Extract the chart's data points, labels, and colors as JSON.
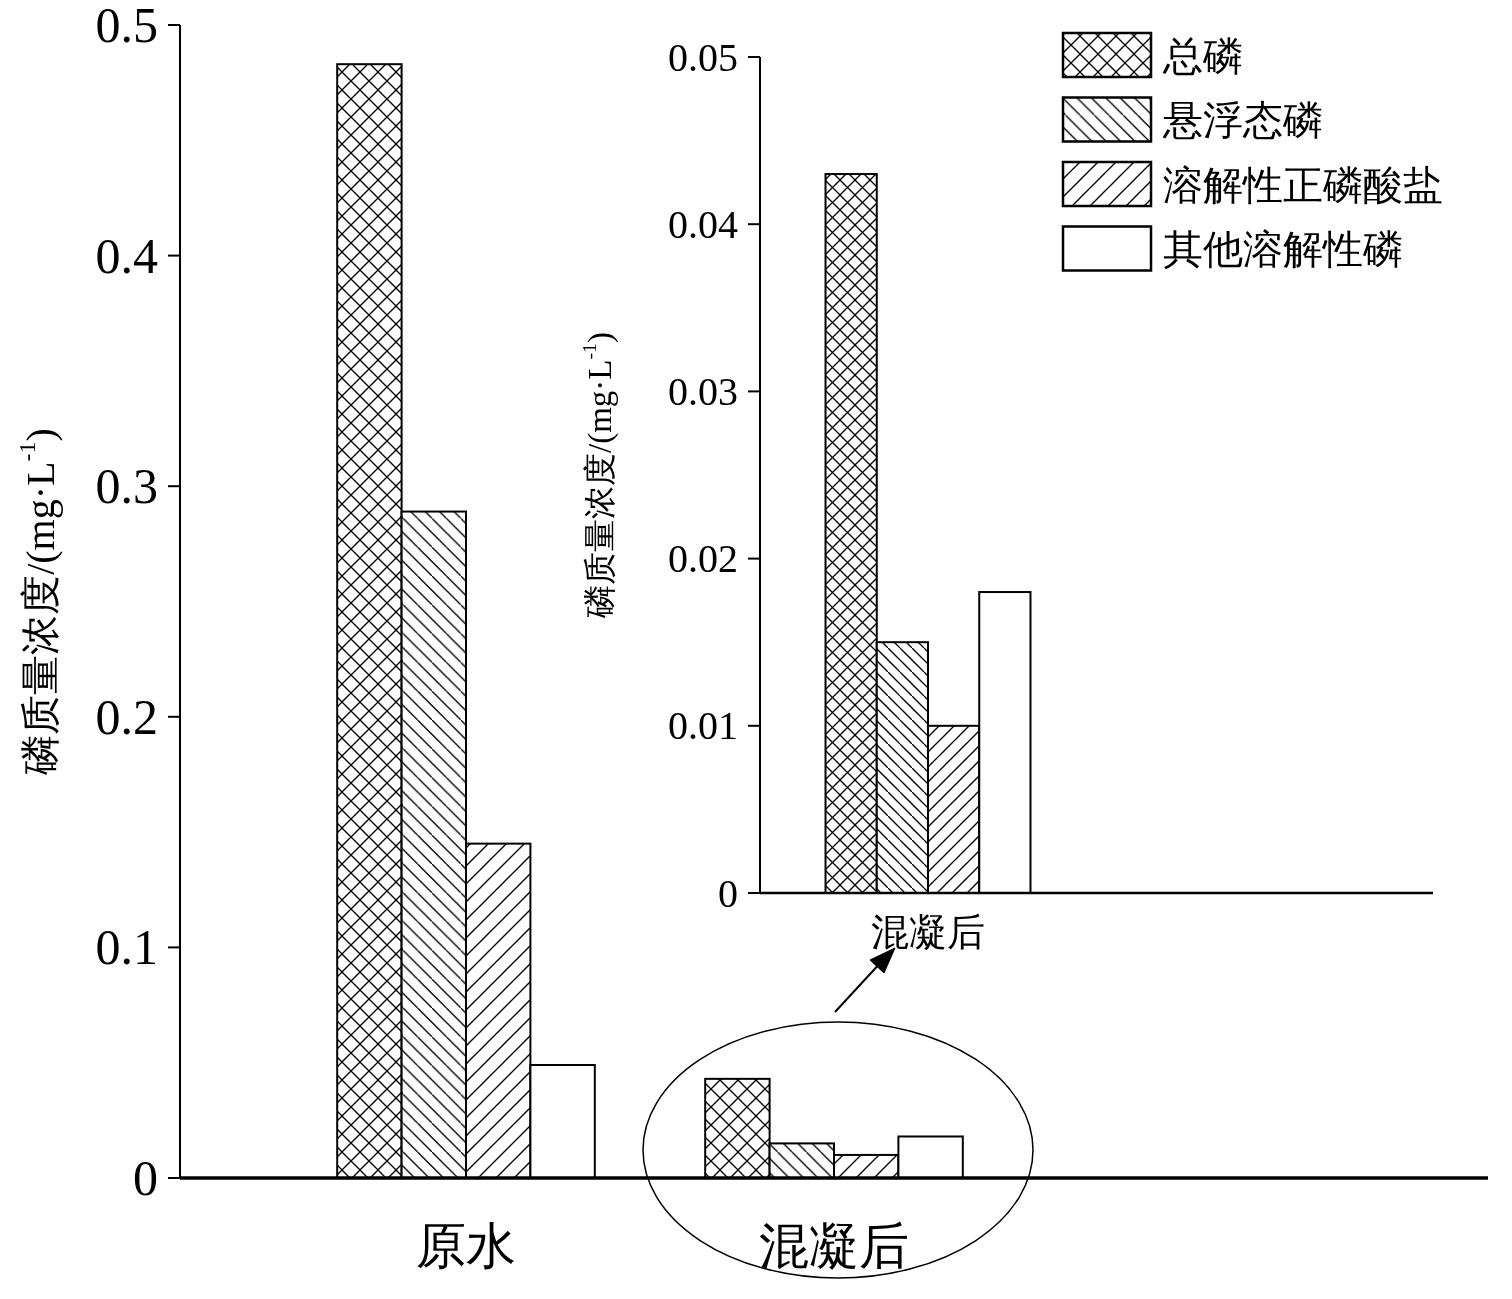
{
  "chart_data": [
    {
      "type": "bar",
      "categories": [
        "原水",
        "混凝后",
        null
      ],
      "ylabel": "磷质量浓度/(mg·L$^{-1}$)",
      "ylim": [
        0,
        0.5
      ],
      "yticks": [
        0,
        0.1,
        0.2,
        0.3,
        0.4,
        0.5
      ],
      "legend": "top right",
      "series": [
        {
          "name": "总磷",
          "color": "#000000",
          "values": [
            0.483,
            0.043,
            null
          ]
        },
        {
          "name": "悬浮态磷",
          "color": "#000000",
          "values": [
            0.289,
            0.015,
            null
          ]
        },
        {
          "name": "溶解性正磷酸盐",
          "color": "#000000",
          "values": [
            0.145,
            0.01,
            null
          ]
        },
        {
          "name": "其他溶解性磷",
          "color": "#ffffff",
          "values": [
            0.049,
            0.018,
            null
          ]
        }
      ]
    },
    {
      "type": "bar",
      "categories": [
        "混凝后"
      ],
      "ylabel": "磷质量浓度/(mg·L$^{-1}$)",
      "ylim": [
        0,
        0.05
      ],
      "yticks": [
        0,
        0.01,
        0.02,
        0.03,
        0.04,
        0.05
      ],
      "series": [
        {
          "color": "#000000",
          "values": [
            0.043
          ]
        },
        {
          "color": "#000000",
          "values": [
            0.015
          ]
        },
        {
          "color": "#000000",
          "values": [
            0.01
          ]
        },
        {
          "color": "#ffffff",
          "values": [
            0.018
          ]
        }
      ]
    }
  ]
}
